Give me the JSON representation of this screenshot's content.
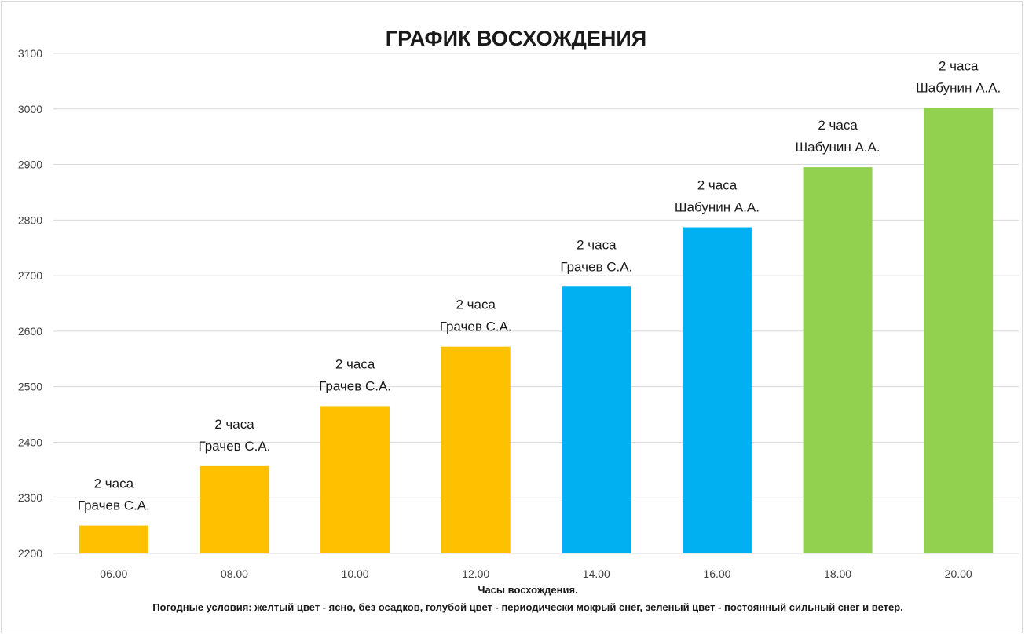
{
  "chart_data": {
    "type": "bar",
    "title": "ГРАФИК ВОСХОЖДЕНИЯ",
    "xlabel": "Часы восхождения.",
    "note": "Погодные условия: желтый цвет - ясно, без осадков, голубой цвет - периодически мокрый снег, зеленый цвет - постоянный сильный снег и ветер.",
    "ylim": [
      2200,
      3100
    ],
    "yticks": [
      2200,
      2300,
      2400,
      2500,
      2600,
      2700,
      2800,
      2900,
      3000,
      3100
    ],
    "grid": true,
    "legend": "none",
    "categories": [
      "06.00",
      "08.00",
      "10.00",
      "12.00",
      "14.00",
      "16.00",
      "18.00",
      "20.00"
    ],
    "values": [
      2250,
      2357,
      2465,
      2572,
      2680,
      2787,
      2895,
      3002
    ],
    "bar_colors": [
      "#FFC000",
      "#FFC000",
      "#FFC000",
      "#FFC000",
      "#00B0F0",
      "#00B0F0",
      "#92D050",
      "#92D050"
    ],
    "data_labels": [
      [
        "2 часа",
        "Грачев С.А."
      ],
      [
        "2 часа",
        "Грачев С.А."
      ],
      [
        "2 часа",
        "Грачев С.А."
      ],
      [
        "2 часа",
        "Грачев С.А."
      ],
      [
        "2 часа",
        "Грачев С.А."
      ],
      [
        "2 часа",
        "Шабунин А.А."
      ],
      [
        "2 часа",
        "Шабунин А.А."
      ],
      [
        "2 часа",
        "Шабунин А.А."
      ]
    ]
  }
}
